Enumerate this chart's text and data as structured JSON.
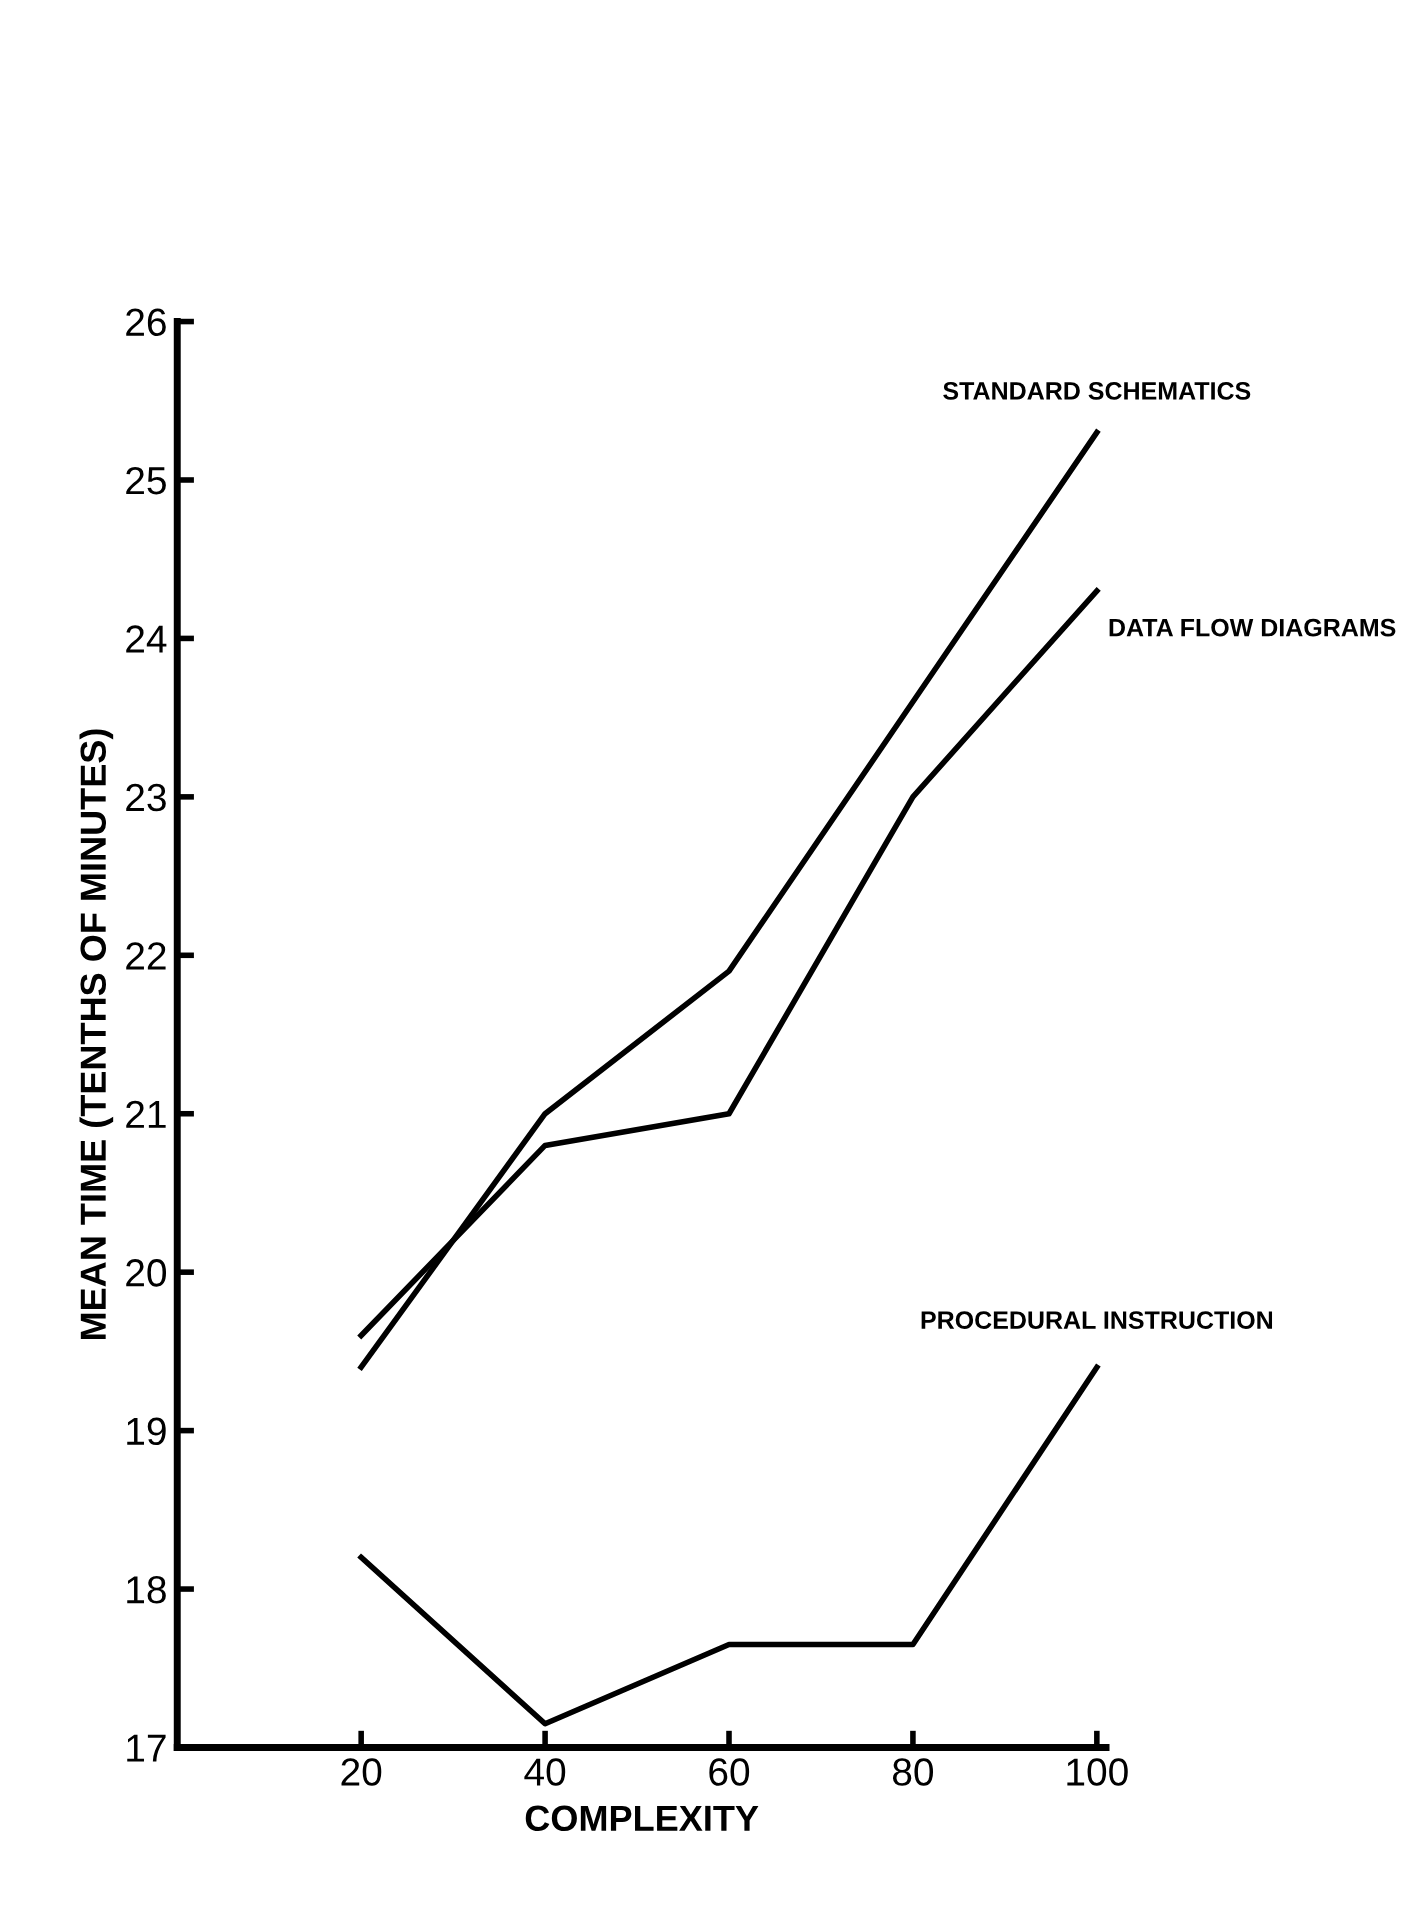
{
  "chart_data": {
    "type": "line",
    "xlabel": "COMPLEXITY",
    "ylabel": "MEAN TIME (TENTHS OF MINUTES)",
    "x": [
      20,
      40,
      60,
      80,
      100
    ],
    "series": [
      {
        "name": "STANDARD SCHEMATICS",
        "color": "#000000",
        "values": [
          19.4,
          21.0,
          21.9,
          23.6,
          25.3
        ]
      },
      {
        "name": "DATA FLOW DIAGRAMS",
        "color": "#000000",
        "values": [
          19.6,
          20.8,
          21.0,
          23.0,
          24.3
        ]
      },
      {
        "name": "PROCEDURAL INSTRUCTION",
        "color": "#000000",
        "values": [
          18.2,
          17.15,
          17.65,
          17.65,
          19.4
        ]
      }
    ],
    "xlim": [
      0,
      101
    ],
    "ylim": [
      17,
      26
    ],
    "xticks": [
      20,
      40,
      60,
      80,
      100
    ],
    "yticks": [
      17,
      18,
      19,
      20,
      21,
      22,
      23,
      24,
      25,
      26
    ],
    "grid": false,
    "legend": false,
    "marker": "none",
    "line_style": "solid"
  }
}
